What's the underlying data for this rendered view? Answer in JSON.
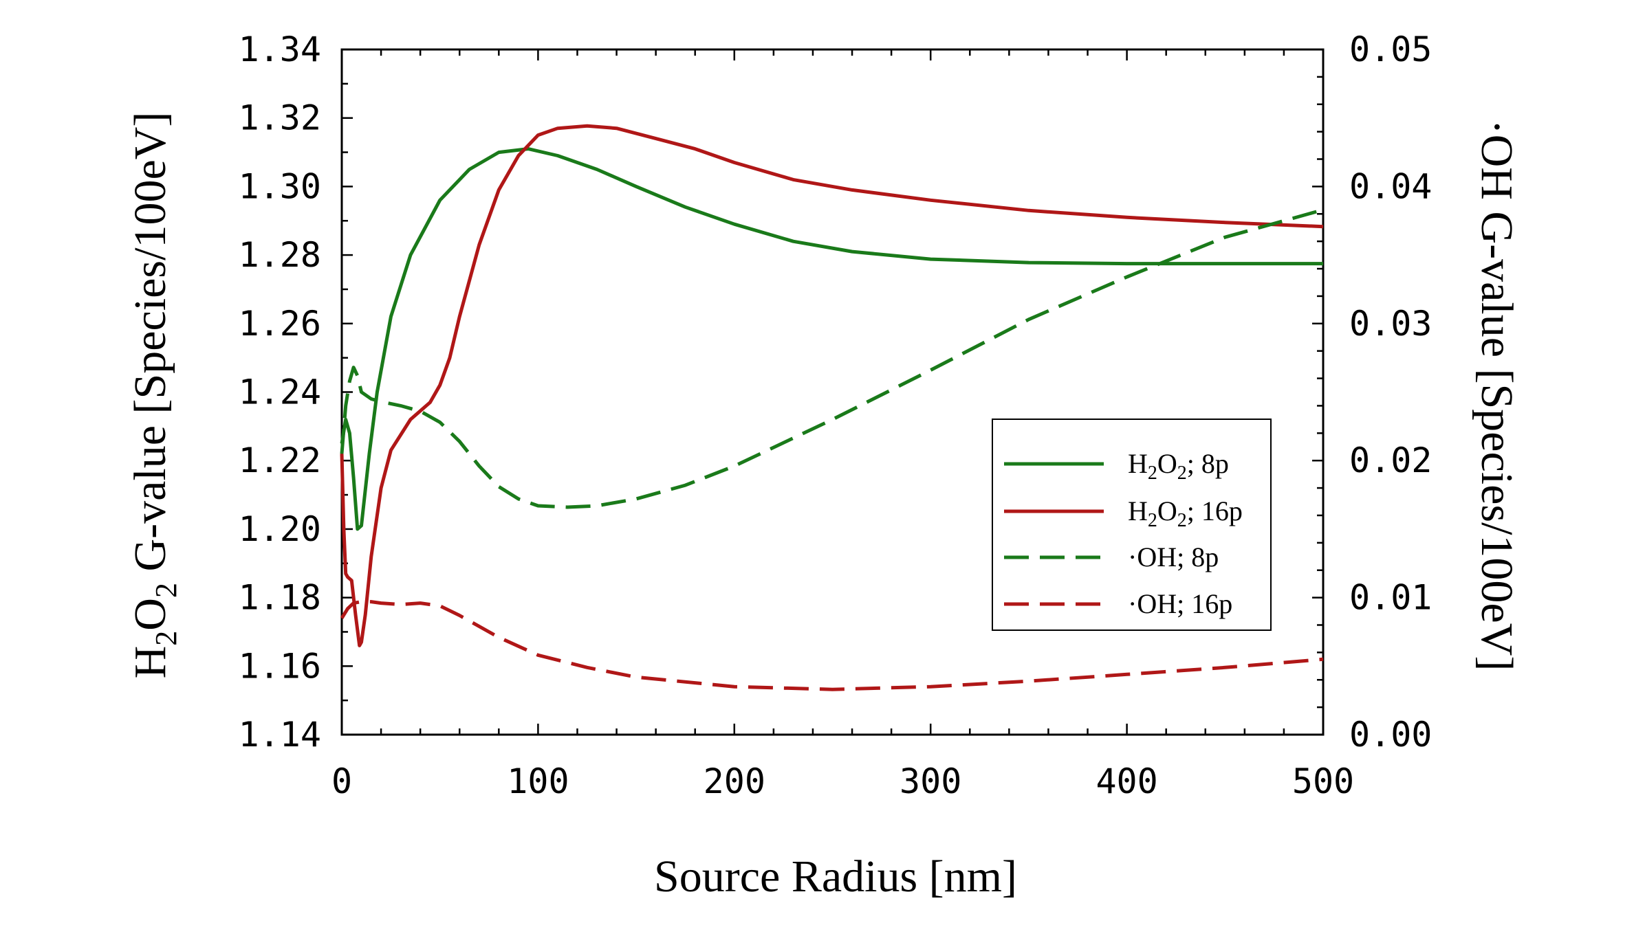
{
  "chart_data": {
    "type": "line",
    "title": "",
    "xlabel": "Source Radius [nm]",
    "ylabel": {
      "prefix": "H",
      "sub1": "2",
      "mid": "O",
      "sub2": "2",
      "rest": " G-value [Species/100eV]"
    },
    "y2label": {
      "dot": "·",
      "rest": "OH G-value [Species/100eV]"
    },
    "xlim": [
      0,
      500
    ],
    "ylim": [
      1.14,
      1.34
    ],
    "y2lim": [
      0.0,
      0.05
    ],
    "x_ticks": [
      "0",
      "100",
      "200",
      "300",
      "400",
      "500"
    ],
    "y_ticks": [
      "1.14",
      "1.16",
      "1.18",
      "1.20",
      "1.22",
      "1.24",
      "1.26",
      "1.28",
      "1.30",
      "1.32",
      "1.34"
    ],
    "y2_ticks": [
      "0.00",
      "0.01",
      "0.02",
      "0.03",
      "0.04",
      "0.05"
    ],
    "series": [
      {
        "name": "H2O2; 8p",
        "legend": {
          "a": "H",
          "s1": "2",
          "b": "O",
          "s2": "2",
          "c": "; 8p"
        },
        "axis": "left",
        "color": "#1a7a1a",
        "dash": "solid",
        "x": [
          0,
          2,
          4,
          6,
          8,
          10,
          14,
          18,
          25,
          35,
          50,
          65,
          80,
          95,
          110,
          130,
          150,
          175,
          200,
          230,
          260,
          300,
          350,
          400,
          450,
          500
        ],
        "values": [
          1.225,
          1.232,
          1.228,
          1.215,
          1.2,
          1.201,
          1.222,
          1.24,
          1.262,
          1.28,
          1.296,
          1.305,
          1.31,
          1.311,
          1.309,
          1.305,
          1.3,
          1.294,
          1.289,
          1.284,
          1.281,
          1.2788,
          1.2778,
          1.2775,
          1.2775,
          1.2775
        ]
      },
      {
        "name": "H2O2; 16p",
        "legend": {
          "a": "H",
          "s1": "2",
          "b": "O",
          "s2": "2",
          "c": "; 16p"
        },
        "axis": "left",
        "color": "#b01717",
        "dash": "solid",
        "x": [
          0,
          1,
          2,
          3,
          5,
          7,
          9,
          10,
          12,
          15,
          20,
          25,
          35,
          45,
          50,
          55,
          60,
          70,
          80,
          90,
          100,
          110,
          125,
          140,
          160,
          180,
          200,
          230,
          260,
          300,
          350,
          400,
          450,
          500
        ],
        "values": [
          1.222,
          1.2,
          1.187,
          1.186,
          1.185,
          1.175,
          1.166,
          1.167,
          1.175,
          1.192,
          1.212,
          1.223,
          1.232,
          1.237,
          1.242,
          1.25,
          1.262,
          1.283,
          1.299,
          1.309,
          1.315,
          1.317,
          1.3177,
          1.317,
          1.314,
          1.311,
          1.307,
          1.302,
          1.299,
          1.296,
          1.293,
          1.291,
          1.2895,
          1.2883
        ]
      },
      {
        "name": "·OH; 8p",
        "legend": {
          "dot": "·",
          "c": "OH; 8p"
        },
        "axis": "right",
        "color": "#1a7a1a",
        "dash": "dashed",
        "x": [
          0,
          2,
          4,
          6,
          8,
          10,
          15,
          20,
          30,
          40,
          50,
          60,
          70,
          80,
          90,
          100,
          115,
          130,
          150,
          175,
          200,
          250,
          300,
          350,
          400,
          450,
          500
        ],
        "values": [
          0.0205,
          0.024,
          0.0258,
          0.0268,
          0.0262,
          0.025,
          0.0245,
          0.0243,
          0.024,
          0.0236,
          0.0228,
          0.0214,
          0.0196,
          0.0181,
          0.0172,
          0.0167,
          0.0166,
          0.0167,
          0.0172,
          0.0182,
          0.0196,
          0.023,
          0.0266,
          0.0303,
          0.0334,
          0.0363,
          0.0383
        ]
      },
      {
        "name": "·OH; 16p",
        "legend": {
          "dot": "·",
          "c": "OH; 16p"
        },
        "axis": "right",
        "color": "#b01717",
        "dash": "dashed",
        "x": [
          0,
          3,
          6,
          10,
          15,
          20,
          30,
          40,
          50,
          60,
          80,
          100,
          125,
          150,
          200,
          250,
          300,
          350,
          400,
          450,
          500
        ],
        "values": [
          0.0085,
          0.0092,
          0.0096,
          0.0097,
          0.0097,
          0.0096,
          0.0095,
          0.0096,
          0.0094,
          0.0087,
          0.0071,
          0.0058,
          0.0049,
          0.0042,
          0.0035,
          0.0033,
          0.0035,
          0.0039,
          0.0044,
          0.0049,
          0.0055
        ]
      }
    ],
    "legend_position": "center-right"
  }
}
